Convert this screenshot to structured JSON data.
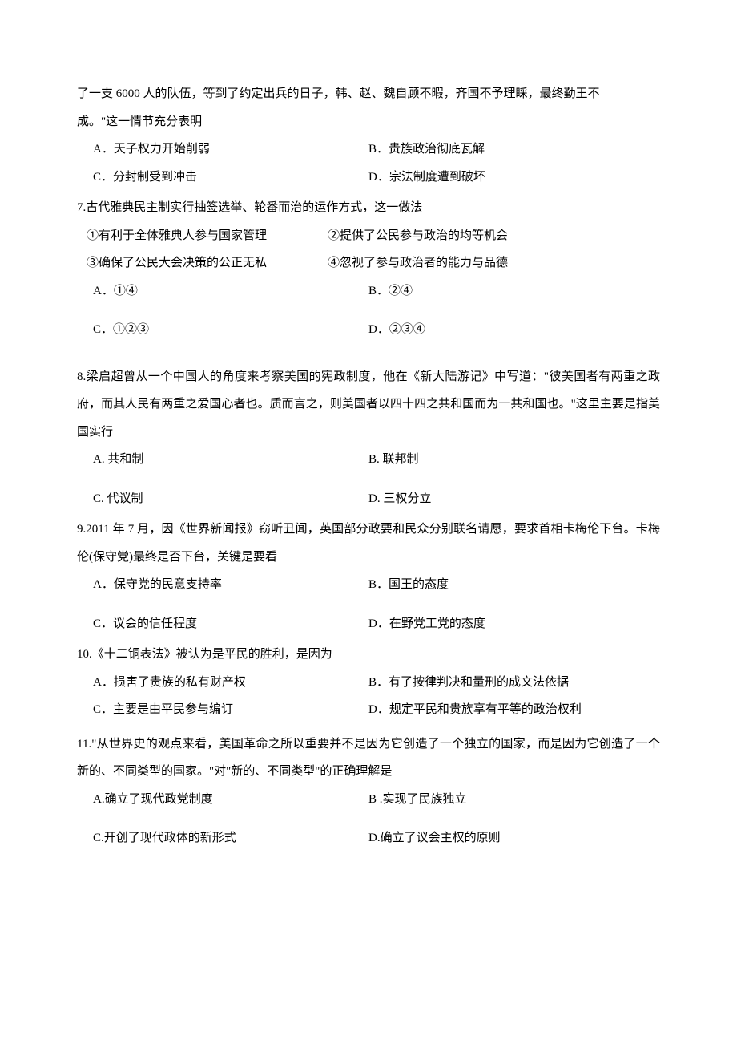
{
  "q6_partial": {
    "line1": "了一支 6000 人的队伍，等到了约定出兵的日子，韩、赵、魏自顾不暇，齐国不予理睬，最终勤王不",
    "line2": "成。\"这一情节充分表明",
    "optA": "A．天子权力开始削弱",
    "optB": "B．贵族政治彻底瓦解",
    "optC": "C．分封制受到冲击",
    "optD": "D．宗法制度遭到破坏"
  },
  "q7": {
    "stem": "7.古代雅典民主制实行抽签选举、轮番而治的运作方式，这一做法",
    "s1": "①有利于全体雅典人参与国家管理",
    "s2": "②提供了公民参与政治的均等机会",
    "s3": "③确保了公民大会决策的公正无私",
    "s4": "④忽视了参与政治者的能力与品德",
    "optA": "A．①④",
    "optB": "B．②④",
    "optC": "C．①②③",
    "optD": "D．②③④"
  },
  "q8": {
    "stem": "8.梁启超曾从一个中国人的角度来考察美国的宪政制度，他在《新大陆游记》中写道：\"彼美国者有两重之政府，而其人民有两重之爱国心者也。质而言之，则美国者以四十四之共和国而为一共和国也。\"这里主要是指美国实行",
    "optA": "A. 共和制",
    "optB": "B. 联邦制",
    "optC": "C. 代议制",
    "optD": "D. 三权分立"
  },
  "q9": {
    "stem": "9.2011 年 7 月，因《世界新闻报》窃听丑闻，英国部分政要和民众分别联名请愿，要求首相卡梅伦下台。卡梅伦(保守党)最终是否下台，关键是要看",
    "optA": "A．保守党的民意支持率",
    "optB": "B．国王的态度",
    "optC": "C．议会的信任程度",
    "optD": "D．在野党工党的态度"
  },
  "q10": {
    "stem": "10.《十二铜表法》被认为是平民的胜利，是因为",
    "optA": "A．损害了贵族的私有财产权",
    "optB": "B．有了按律判决和量刑的成文法依据",
    "optC": "C．主要是由平民参与编订",
    "optD": "D．规定平民和贵族享有平等的政治权利"
  },
  "q11": {
    "stem": "11.\"从世界史的观点来看，美国革命之所以重要并不是因为它创造了一个独立的国家，而是因为它创造了一个新的、不同类型的国家。\"对\"新的、不同类型\"的正确理解是",
    "optA": "A.确立了现代政党制度",
    "optB": "B .实现了民族独立",
    "optC": "C.开创了现代政体的新形式",
    "optD": "D.确立了议会主权的原则"
  }
}
